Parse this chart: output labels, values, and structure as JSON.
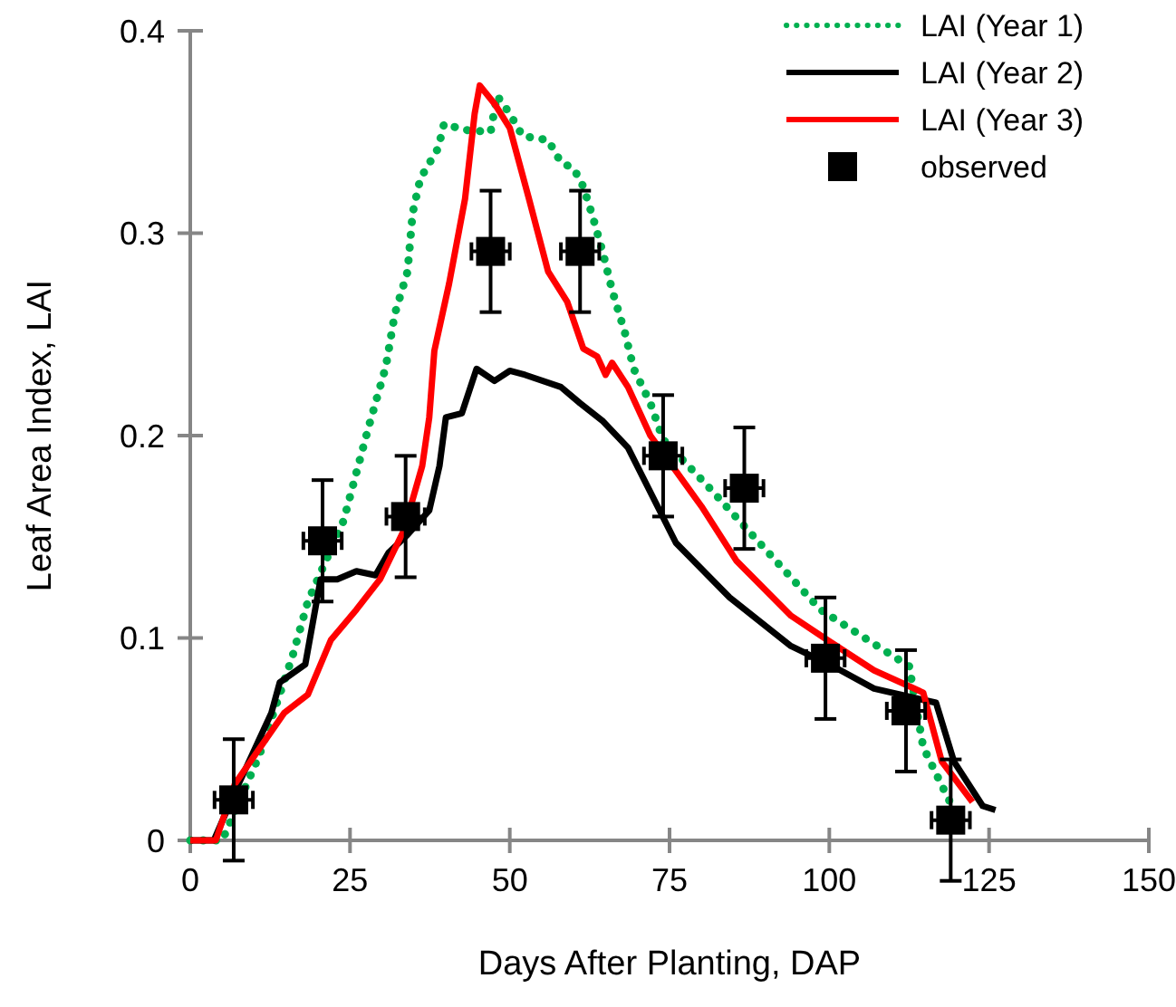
{
  "chart_data": {
    "type": "line",
    "xlabel": "Days After Planting, DAP",
    "ylabel": "Leaf Area Index, LAI",
    "xlim": [
      0,
      150
    ],
    "xticks": [
      0,
      25,
      50,
      75,
      100,
      125,
      150
    ],
    "ylim": [
      0,
      0.4
    ],
    "yticks": [
      0,
      0.1,
      0.2,
      0.3,
      0.4
    ],
    "grid": false,
    "legend": "top right",
    "series": [
      {
        "name": "LAI (Year 1)",
        "color": "#00b050",
        "line_style": "dotted",
        "marker": "none",
        "x": [
          0,
          5,
          10.8,
          16,
          18.4,
          24,
          27.8,
          30.6,
          32,
          34,
          34.8,
          36,
          38.8,
          39.7,
          43,
          47,
          48,
          50,
          52,
          56,
          58,
          60,
          61.5,
          63,
          64.6,
          66,
          68,
          69.4,
          72,
          74,
          80.7,
          98.6,
          112.5,
          114.7,
          118.4,
          120
        ],
        "values": [
          0,
          0,
          0.042,
          0.091,
          0.118,
          0.158,
          0.203,
          0.234,
          0.26,
          0.281,
          0.31,
          0.327,
          0.342,
          0.354,
          0.351,
          0.35,
          0.368,
          0.359,
          0.348,
          0.346,
          0.335,
          0.332,
          0.323,
          0.308,
          0.29,
          0.272,
          0.251,
          0.233,
          0.216,
          0.198,
          0.176,
          0.114,
          0.086,
          0.046,
          0.022,
          0.012
        ]
      },
      {
        "name": "LAI (Year 2)",
        "color": "#000000",
        "line_style": "solid",
        "marker": "none",
        "x": [
          0,
          3.7,
          7,
          12.7,
          14,
          18,
          20.4,
          23,
          26,
          29,
          31,
          34,
          37.4,
          39,
          40,
          42.5,
          44.8,
          47.6,
          50,
          52.4,
          58,
          61,
          64.6,
          68.5,
          76,
          84.4,
          94,
          100.6,
          107,
          116.7,
          119.5,
          124,
          126
        ],
        "values": [
          0,
          0,
          0.024,
          0.063,
          0.078,
          0.087,
          0.129,
          0.129,
          0.133,
          0.131,
          0.142,
          0.151,
          0.163,
          0.185,
          0.209,
          0.211,
          0.233,
          0.227,
          0.232,
          0.23,
          0.224,
          0.216,
          0.207,
          0.194,
          0.147,
          0.12,
          0.096,
          0.086,
          0.075,
          0.068,
          0.039,
          0.017,
          0.015
        ]
      },
      {
        "name": "LAI (Year 3)",
        "color": "#ff0000",
        "line_style": "solid",
        "marker": "none",
        "x": [
          0,
          4,
          7,
          14.7,
          18.4,
          22,
          26,
          29.7,
          33.4,
          36.3,
          37.4,
          38.2,
          40.5,
          43,
          44.5,
          45.3,
          47.6,
          50,
          53,
          56,
          59,
          61.5,
          63.7,
          65,
          66,
          68.5,
          72,
          80,
          85.5,
          94,
          99.7,
          107,
          114.7,
          117.6,
          122.4
        ],
        "values": [
          0,
          0,
          0.028,
          0.063,
          0.072,
          0.099,
          0.114,
          0.129,
          0.153,
          0.185,
          0.209,
          0.242,
          0.275,
          0.317,
          0.359,
          0.373,
          0.364,
          0.352,
          0.317,
          0.281,
          0.266,
          0.243,
          0.239,
          0.23,
          0.236,
          0.224,
          0.2,
          0.165,
          0.138,
          0.111,
          0.099,
          0.084,
          0.073,
          0.039,
          0.019
        ]
      },
      {
        "name": "observed",
        "type": "scatter",
        "color": "#000000",
        "marker": "square",
        "x": [
          6.8,
          20.7,
          33.7,
          47,
          61,
          74,
          86.7,
          99.4,
          112,
          119
        ],
        "values": [
          0.02,
          0.148,
          0.16,
          0.291,
          0.291,
          0.19,
          0.174,
          0.09,
          0.064,
          0.01
        ],
        "errors": [
          0.03,
          0.03,
          0.03,
          0.03,
          0.03,
          0.03,
          0.03,
          0.03,
          0.03,
          0.03
        ],
        "xerrors": [
          3,
          3,
          3,
          3,
          3,
          3,
          3,
          3,
          3,
          3
        ]
      }
    ]
  }
}
